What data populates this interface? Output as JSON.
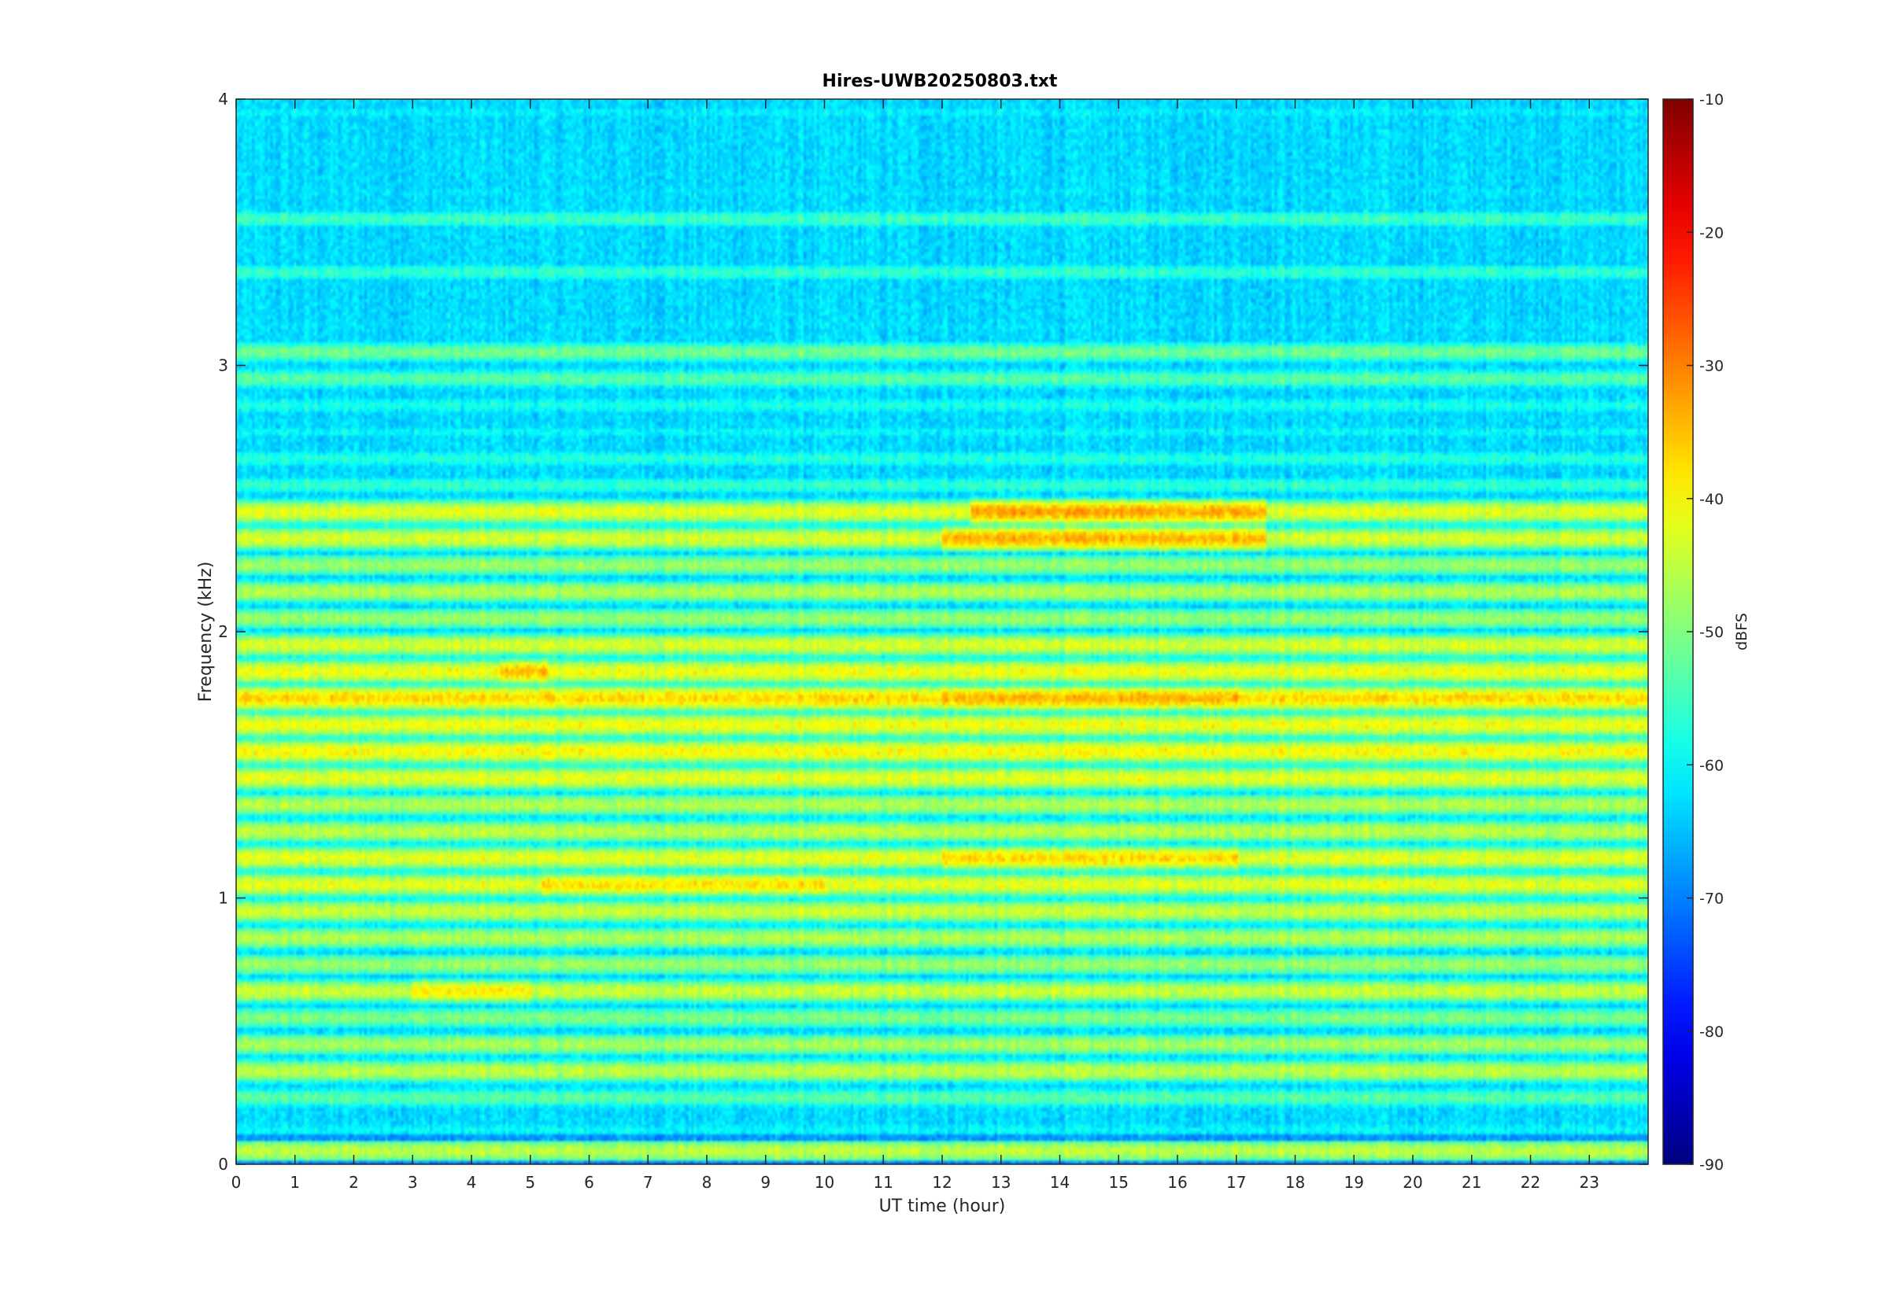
{
  "chart_data": {
    "type": "heatmap",
    "title": "Hires-UWB20250803.txt",
    "xlabel": "UT time (hour)",
    "ylabel": "Frequency (kHz)",
    "xlim": [
      0,
      24
    ],
    "ylim": [
      0,
      4
    ],
    "x_ticks": [
      0,
      1,
      2,
      3,
      4,
      5,
      6,
      7,
      8,
      9,
      10,
      11,
      12,
      13,
      14,
      15,
      16,
      17,
      18,
      19,
      20,
      21,
      22,
      23
    ],
    "y_ticks": [
      0,
      1,
      2,
      3,
      4
    ],
    "colorbar": {
      "label": "dBFS",
      "range": [
        -90,
        -10
      ],
      "ticks": [
        -90,
        -80,
        -70,
        -60,
        -50,
        -40,
        -30,
        -20,
        -10
      ],
      "colormap": "jet"
    },
    "grid": false,
    "background_level_dbfs": -60,
    "bands": [
      {
        "freq_khz": 0.05,
        "level_dbfs": -45
      },
      {
        "freq_khz": 0.13,
        "level_dbfs": -60
      },
      {
        "freq_khz": 0.25,
        "level_dbfs": -53
      },
      {
        "freq_khz": 0.35,
        "level_dbfs": -45
      },
      {
        "freq_khz": 0.45,
        "level_dbfs": -47
      },
      {
        "freq_khz": 0.55,
        "level_dbfs": -50
      },
      {
        "freq_khz": 0.65,
        "level_dbfs": -44
      },
      {
        "freq_khz": 0.75,
        "level_dbfs": -48
      },
      {
        "freq_khz": 0.85,
        "level_dbfs": -46
      },
      {
        "freq_khz": 0.95,
        "level_dbfs": -44
      },
      {
        "freq_khz": 1.05,
        "level_dbfs": -42
      },
      {
        "freq_khz": 1.15,
        "level_dbfs": -42
      },
      {
        "freq_khz": 1.25,
        "level_dbfs": -45
      },
      {
        "freq_khz": 1.35,
        "level_dbfs": -46
      },
      {
        "freq_khz": 1.45,
        "level_dbfs": -42
      },
      {
        "freq_khz": 1.55,
        "level_dbfs": -40
      },
      {
        "freq_khz": 1.65,
        "level_dbfs": -41
      },
      {
        "freq_khz": 1.75,
        "level_dbfs": -37
      },
      {
        "freq_khz": 1.85,
        "level_dbfs": -41
      },
      {
        "freq_khz": 1.95,
        "level_dbfs": -43
      },
      {
        "freq_khz": 2.05,
        "level_dbfs": -48
      },
      {
        "freq_khz": 2.15,
        "level_dbfs": -46
      },
      {
        "freq_khz": 2.25,
        "level_dbfs": -48
      },
      {
        "freq_khz": 2.35,
        "level_dbfs": -43
      },
      {
        "freq_khz": 2.45,
        "level_dbfs": -42
      },
      {
        "freq_khz": 2.55,
        "level_dbfs": -56
      },
      {
        "freq_khz": 2.65,
        "level_dbfs": -57
      },
      {
        "freq_khz": 2.75,
        "level_dbfs": -60
      },
      {
        "freq_khz": 2.85,
        "level_dbfs": -58
      },
      {
        "freq_khz": 2.95,
        "level_dbfs": -53
      },
      {
        "freq_khz": 3.05,
        "level_dbfs": -51
      },
      {
        "freq_khz": 3.15,
        "level_dbfs": -62
      },
      {
        "freq_khz": 3.25,
        "level_dbfs": -63
      },
      {
        "freq_khz": 3.35,
        "level_dbfs": -56
      },
      {
        "freq_khz": 3.45,
        "level_dbfs": -63
      },
      {
        "freq_khz": 3.55,
        "level_dbfs": -55
      },
      {
        "freq_khz": 3.65,
        "level_dbfs": -62
      },
      {
        "freq_khz": 3.75,
        "level_dbfs": -64
      },
      {
        "freq_khz": 3.85,
        "level_dbfs": -63
      },
      {
        "freq_khz": 3.95,
        "level_dbfs": -61
      }
    ],
    "hotspots": [
      {
        "t_start_h": 12.5,
        "t_end_h": 17.5,
        "freq_khz": 2.45,
        "level_dbfs": -33
      },
      {
        "t_start_h": 12.0,
        "t_end_h": 17.5,
        "freq_khz": 2.35,
        "level_dbfs": -34
      },
      {
        "t_start_h": 12.0,
        "t_end_h": 17.0,
        "freq_khz": 1.75,
        "level_dbfs": -34
      },
      {
        "t_start_h": 5.2,
        "t_end_h": 10.0,
        "freq_khz": 1.75,
        "level_dbfs": -37
      },
      {
        "t_start_h": 4.5,
        "t_end_h": 5.3,
        "freq_khz": 1.85,
        "level_dbfs": -35
      },
      {
        "t_start_h": 12.0,
        "t_end_h": 17.0,
        "freq_khz": 1.15,
        "level_dbfs": -37
      },
      {
        "t_start_h": 5.2,
        "t_end_h": 10.0,
        "freq_khz": 1.05,
        "level_dbfs": -38
      },
      {
        "t_start_h": 3.0,
        "t_end_h": 5.0,
        "freq_khz": 0.65,
        "level_dbfs": -39
      }
    ],
    "low_bands": [
      {
        "freq_khz": 0.005,
        "level_dbfs": -70
      },
      {
        "freq_khz": 0.095,
        "level_dbfs": -68
      }
    ]
  }
}
